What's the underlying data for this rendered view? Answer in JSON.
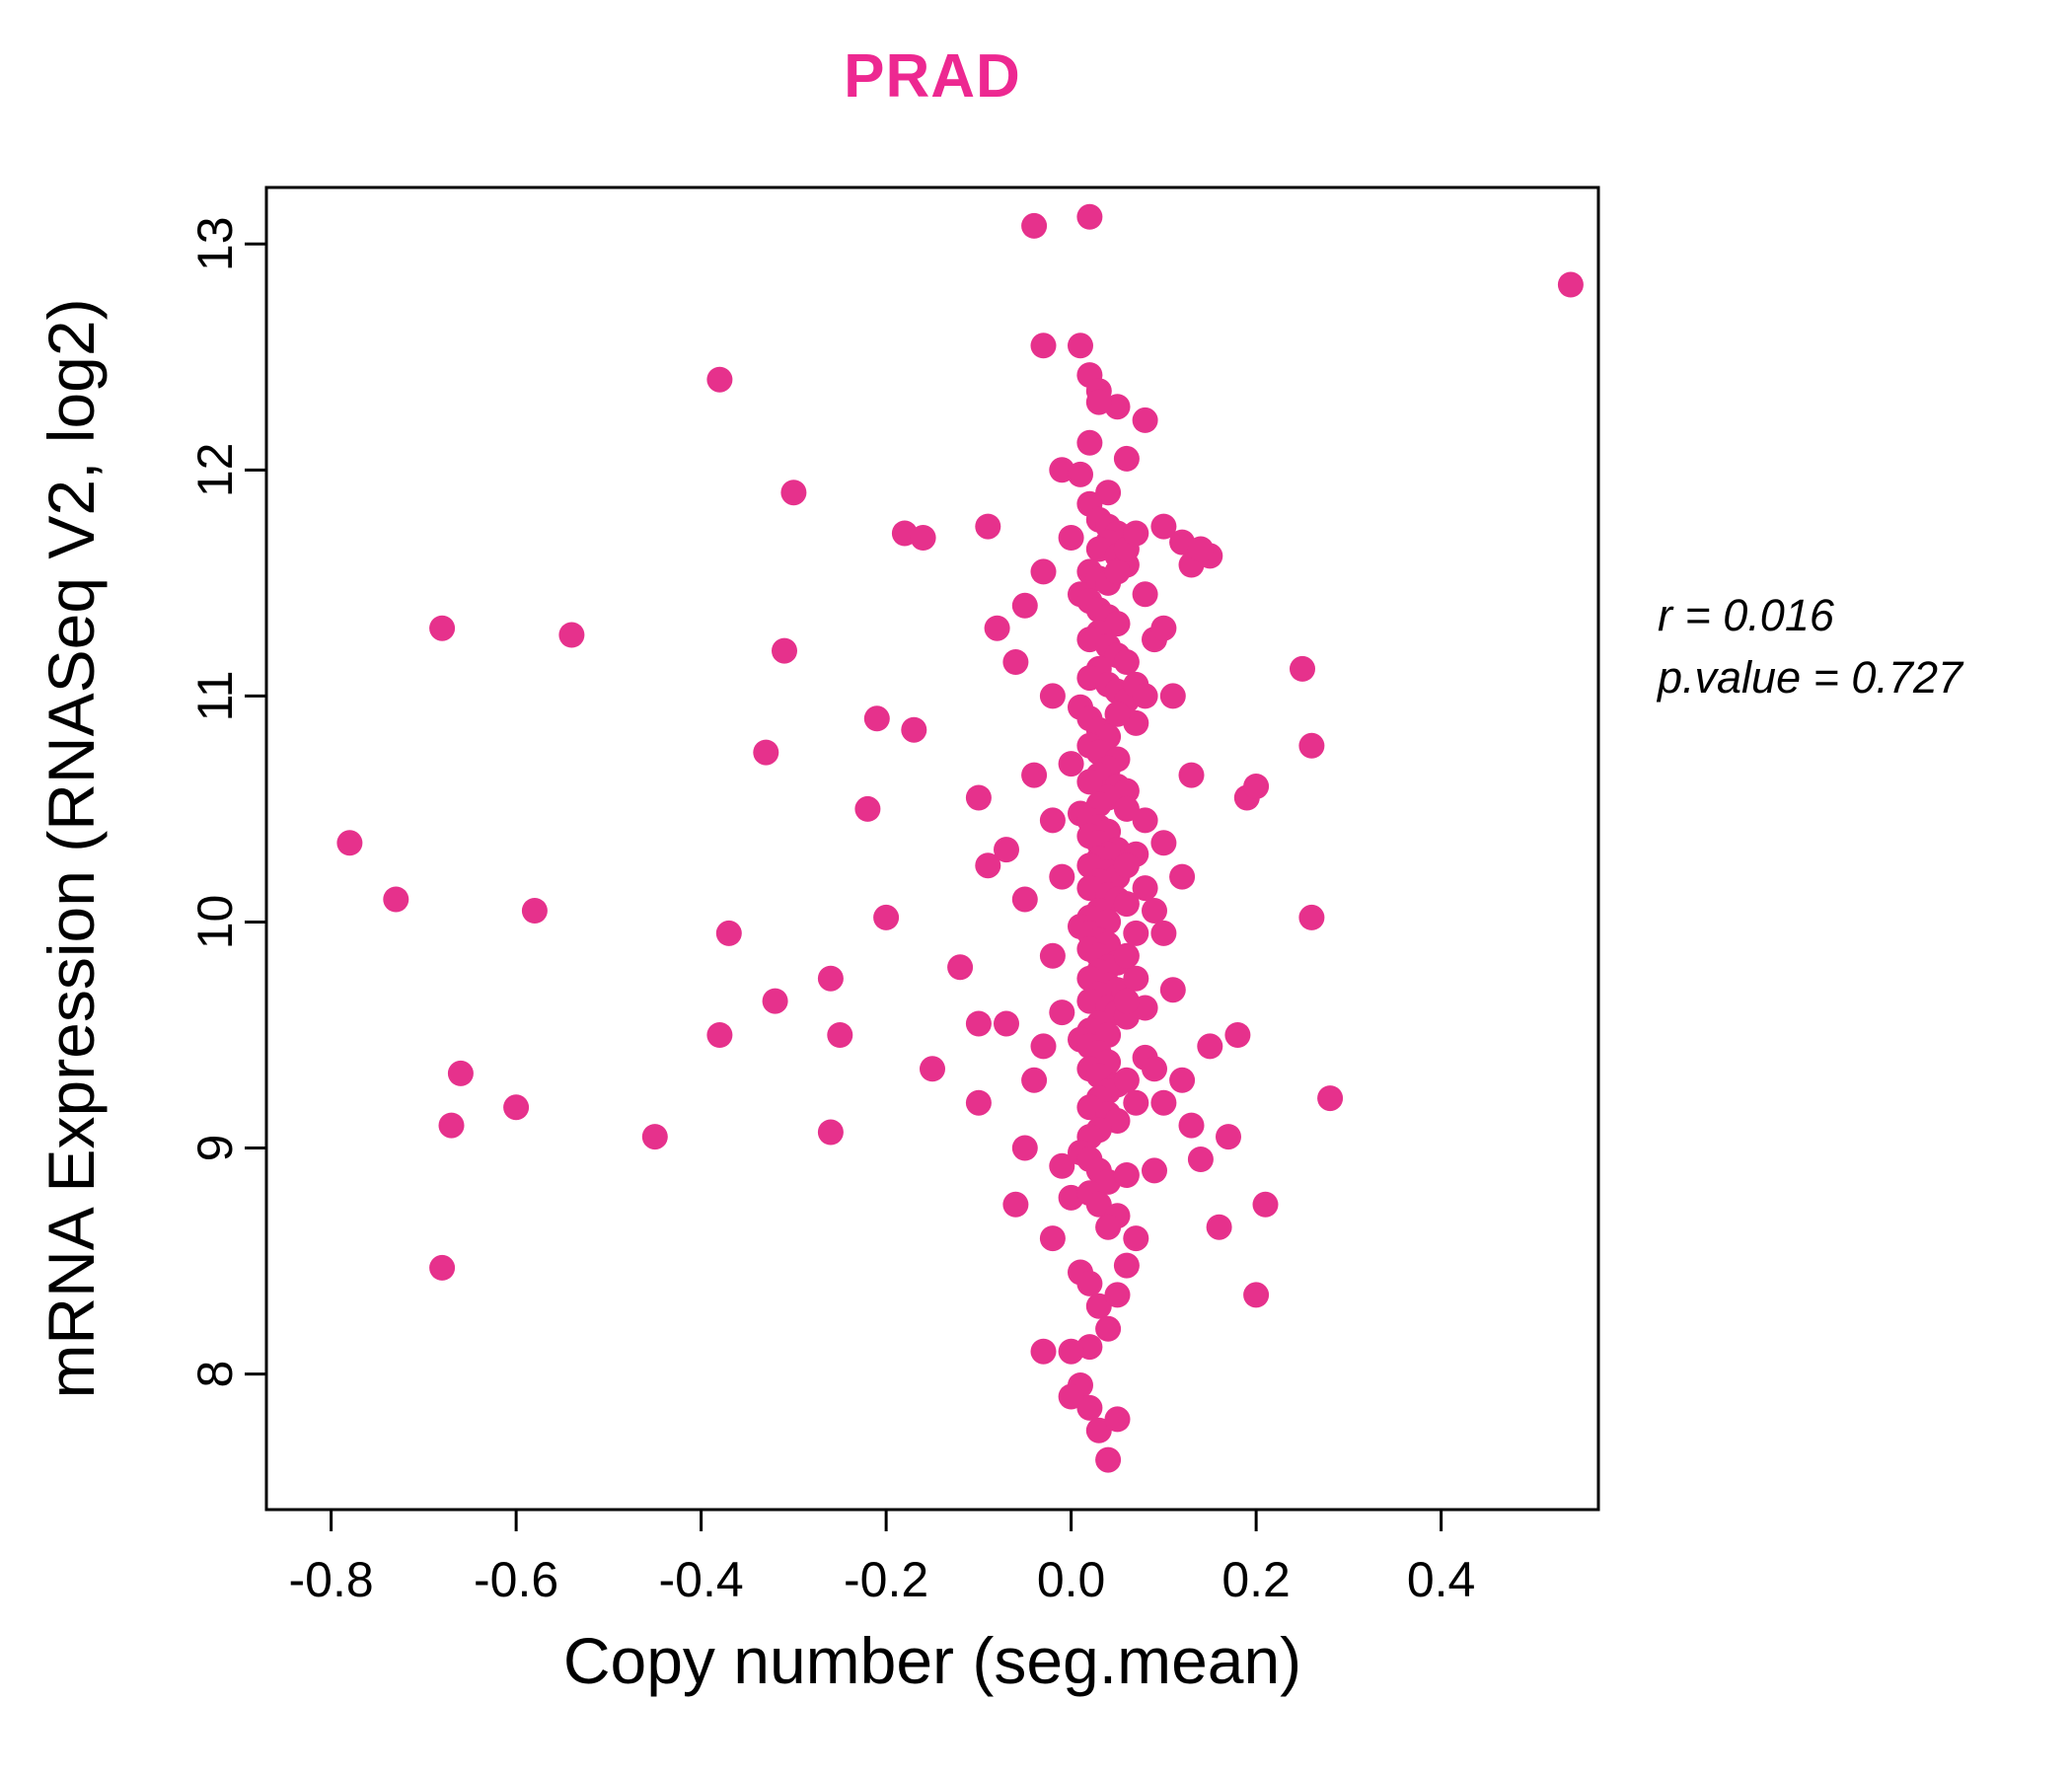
{
  "annotation": {
    "r_line": "r = 0.016",
    "p_line": "p.value = 0.727"
  },
  "chart_data": {
    "type": "scatter",
    "title": "PRAD",
    "xlabel": "Copy number (seg.mean)",
    "ylabel": "mRNA Expression (RNASeq V2, log2)",
    "point_color": "#E6318C",
    "title_color": "#ED2891",
    "r": 0.016,
    "p_value": 0.727,
    "xlim": [
      -0.87,
      0.57
    ],
    "ylim": [
      7.4,
      13.25
    ],
    "grid": false,
    "legend": "none",
    "x_ticks": [
      {
        "value": -0.8,
        "label": "-0.8"
      },
      {
        "value": -0.6,
        "label": "-0.6"
      },
      {
        "value": -0.4,
        "label": "-0.4"
      },
      {
        "value": -0.2,
        "label": "-0.2"
      },
      {
        "value": 0.0,
        "label": "0.0"
      },
      {
        "value": 0.2,
        "label": "0.2"
      },
      {
        "value": 0.4,
        "label": "0.4"
      }
    ],
    "y_ticks": [
      {
        "value": 8,
        "label": "8"
      },
      {
        "value": 9,
        "label": "9"
      },
      {
        "value": 10,
        "label": "10"
      },
      {
        "value": 11,
        "label": "11"
      },
      {
        "value": 12,
        "label": "12"
      },
      {
        "value": 13,
        "label": "13"
      }
    ],
    "points": [
      [
        0.54,
        12.82
      ],
      [
        -0.04,
        13.08
      ],
      [
        0.02,
        13.12
      ],
      [
        -0.03,
        12.55
      ],
      [
        -0.38,
        12.4
      ],
      [
        -0.78,
        10.35
      ],
      [
        -0.73,
        10.1
      ],
      [
        -0.68,
        11.3
      ],
      [
        -0.68,
        8.47
      ],
      [
        -0.66,
        9.33
      ],
      [
        -0.67,
        9.1
      ],
      [
        -0.6,
        9.18
      ],
      [
        -0.58,
        10.05
      ],
      [
        -0.54,
        11.27
      ],
      [
        -0.45,
        9.05
      ],
      [
        -0.38,
        9.5
      ],
      [
        -0.37,
        9.95
      ],
      [
        -0.33,
        10.75
      ],
      [
        -0.31,
        11.2
      ],
      [
        -0.3,
        11.9
      ],
      [
        -0.32,
        9.65
      ],
      [
        -0.26,
        9.75
      ],
      [
        -0.25,
        9.5
      ],
      [
        -0.26,
        9.07
      ],
      [
        -0.22,
        10.5
      ],
      [
        -0.21,
        10.9
      ],
      [
        -0.2,
        10.02
      ],
      [
        -0.18,
        11.72
      ],
      [
        -0.16,
        11.7
      ],
      [
        -0.17,
        10.85
      ],
      [
        -0.15,
        9.35
      ],
      [
        -0.12,
        9.8
      ],
      [
        -0.1,
        9.2
      ],
      [
        -0.1,
        9.55
      ],
      [
        -0.1,
        10.55
      ],
      [
        -0.09,
        11.75
      ],
      [
        -0.09,
        10.25
      ],
      [
        -0.08,
        11.3
      ],
      [
        -0.07,
        10.32
      ],
      [
        -0.07,
        9.55
      ],
      [
        -0.06,
        11.15
      ],
      [
        -0.06,
        8.75
      ],
      [
        -0.05,
        11.4
      ],
      [
        -0.05,
        10.1
      ],
      [
        -0.05,
        9.0
      ],
      [
        -0.04,
        10.65
      ],
      [
        -0.04,
        9.3
      ],
      [
        -0.03,
        11.55
      ],
      [
        -0.03,
        9.45
      ],
      [
        -0.02,
        11.0
      ],
      [
        -0.02,
        10.45
      ],
      [
        -0.02,
        9.85
      ],
      [
        -0.02,
        8.6
      ],
      [
        -0.01,
        12.0
      ],
      [
        -0.01,
        10.2
      ],
      [
        -0.01,
        9.6
      ],
      [
        0.0,
        11.7
      ],
      [
        0.0,
        10.7
      ],
      [
        0.0,
        8.78
      ],
      [
        -0.03,
        8.1
      ],
      [
        0.01,
        12.55
      ],
      [
        0.02,
        12.42
      ],
      [
        0.03,
        12.35
      ],
      [
        0.05,
        12.28
      ],
      [
        0.03,
        12.3
      ],
      [
        0.06,
        12.05
      ],
      [
        0.08,
        12.22
      ],
      [
        0.02,
        12.12
      ],
      [
        0.01,
        11.98
      ],
      [
        0.04,
        11.9
      ],
      [
        0.02,
        11.85
      ],
      [
        0.03,
        11.78
      ],
      [
        0.04,
        11.75
      ],
      [
        0.05,
        11.72
      ],
      [
        0.04,
        11.68
      ],
      [
        0.03,
        11.65
      ],
      [
        0.05,
        11.62
      ],
      [
        0.06,
        11.58
      ],
      [
        0.02,
        11.55
      ],
      [
        0.03,
        11.52
      ],
      [
        0.04,
        11.5
      ],
      [
        0.05,
        11.55
      ],
      [
        0.06,
        11.65
      ],
      [
        0.07,
        11.72
      ],
      [
        0.1,
        11.75
      ],
      [
        0.12,
        11.68
      ],
      [
        0.13,
        11.58
      ],
      [
        0.15,
        11.62
      ],
      [
        0.14,
        11.65
      ],
      [
        0.01,
        11.45
      ],
      [
        0.02,
        11.42
      ],
      [
        0.03,
        11.38
      ],
      [
        0.04,
        11.35
      ],
      [
        0.05,
        11.32
      ],
      [
        0.03,
        11.28
      ],
      [
        0.02,
        11.25
      ],
      [
        0.04,
        11.22
      ],
      [
        0.05,
        11.18
      ],
      [
        0.06,
        11.15
      ],
      [
        0.03,
        11.12
      ],
      [
        0.02,
        11.08
      ],
      [
        0.04,
        11.05
      ],
      [
        0.05,
        11.02
      ],
      [
        0.06,
        10.98
      ],
      [
        0.07,
        11.05
      ],
      [
        0.08,
        11.0
      ],
      [
        0.08,
        11.45
      ],
      [
        0.09,
        11.25
      ],
      [
        0.1,
        11.3
      ],
      [
        0.11,
        11.0
      ],
      [
        0.25,
        11.12
      ],
      [
        0.01,
        10.95
      ],
      [
        0.02,
        10.9
      ],
      [
        0.03,
        10.85
      ],
      [
        0.04,
        10.82
      ],
      [
        0.02,
        10.78
      ],
      [
        0.03,
        10.75
      ],
      [
        0.05,
        10.72
      ],
      [
        0.04,
        10.68
      ],
      [
        0.03,
        10.65
      ],
      [
        0.02,
        10.62
      ],
      [
        0.05,
        10.6
      ],
      [
        0.06,
        10.58
      ],
      [
        0.04,
        10.55
      ],
      [
        0.03,
        10.52
      ],
      [
        0.06,
        10.5
      ],
      [
        0.07,
        10.88
      ],
      [
        0.13,
        10.65
      ],
      [
        0.19,
        10.55
      ],
      [
        0.2,
        10.6
      ],
      [
        0.26,
        10.78
      ],
      [
        0.05,
        10.92
      ],
      [
        0.01,
        10.48
      ],
      [
        0.02,
        10.45
      ],
      [
        0.03,
        10.42
      ],
      [
        0.04,
        10.4
      ],
      [
        0.02,
        10.38
      ],
      [
        0.03,
        10.35
      ],
      [
        0.05,
        10.32
      ],
      [
        0.04,
        10.3
      ],
      [
        0.03,
        10.28
      ],
      [
        0.02,
        10.25
      ],
      [
        0.04,
        10.22
      ],
      [
        0.05,
        10.2
      ],
      [
        0.03,
        10.18
      ],
      [
        0.02,
        10.15
      ],
      [
        0.04,
        10.12
      ],
      [
        0.05,
        10.1
      ],
      [
        0.06,
        10.08
      ],
      [
        0.03,
        10.05
      ],
      [
        0.02,
        10.02
      ],
      [
        0.04,
        10.0
      ],
      [
        0.07,
        10.3
      ],
      [
        0.08,
        10.45
      ],
      [
        0.08,
        10.15
      ],
      [
        0.06,
        10.25
      ],
      [
        0.1,
        10.35
      ],
      [
        0.12,
        10.2
      ],
      [
        0.09,
        10.05
      ],
      [
        0.26,
        10.02
      ],
      [
        0.01,
        9.98
      ],
      [
        0.02,
        9.95
      ],
      [
        0.03,
        9.92
      ],
      [
        0.04,
        9.9
      ],
      [
        0.02,
        9.88
      ],
      [
        0.03,
        9.85
      ],
      [
        0.05,
        9.82
      ],
      [
        0.04,
        9.8
      ],
      [
        0.03,
        9.78
      ],
      [
        0.02,
        9.75
      ],
      [
        0.04,
        9.72
      ],
      [
        0.05,
        9.7
      ],
      [
        0.03,
        9.68
      ],
      [
        0.02,
        9.65
      ],
      [
        0.04,
        9.62
      ],
      [
        0.05,
        9.6
      ],
      [
        0.06,
        9.58
      ],
      [
        0.03,
        9.55
      ],
      [
        0.02,
        9.52
      ],
      [
        0.04,
        9.5
      ],
      [
        0.07,
        9.75
      ],
      [
        0.08,
        9.62
      ],
      [
        0.06,
        9.85
      ],
      [
        0.07,
        9.95
      ],
      [
        0.1,
        9.95
      ],
      [
        0.11,
        9.7
      ],
      [
        0.06,
        9.65
      ],
      [
        0.01,
        9.48
      ],
      [
        0.02,
        9.45
      ],
      [
        0.03,
        9.42
      ],
      [
        0.04,
        9.38
      ],
      [
        0.02,
        9.35
      ],
      [
        0.03,
        9.32
      ],
      [
        0.05,
        9.28
      ],
      [
        0.04,
        9.25
      ],
      [
        0.03,
        9.22
      ],
      [
        0.02,
        9.18
      ],
      [
        0.04,
        9.15
      ],
      [
        0.05,
        9.12
      ],
      [
        0.03,
        9.08
      ],
      [
        0.02,
        9.05
      ],
      [
        0.06,
        9.3
      ],
      [
        0.07,
        9.2
      ],
      [
        0.08,
        9.4
      ],
      [
        0.09,
        9.35
      ],
      [
        0.1,
        9.2
      ],
      [
        0.12,
        9.3
      ],
      [
        0.13,
        9.1
      ],
      [
        0.15,
        9.45
      ],
      [
        0.17,
        9.05
      ],
      [
        0.18,
        9.5
      ],
      [
        0.28,
        9.22
      ],
      [
        0.14,
        8.95
      ],
      [
        0.01,
        8.98
      ],
      [
        0.02,
        8.95
      ],
      [
        0.03,
        8.9
      ],
      [
        0.04,
        8.85
      ],
      [
        0.02,
        8.8
      ],
      [
        0.03,
        8.75
      ],
      [
        0.05,
        8.7
      ],
      [
        0.04,
        8.65
      ],
      [
        0.06,
        8.88
      ],
      [
        0.07,
        8.6
      ],
      [
        0.09,
        8.9
      ],
      [
        0.16,
        8.65
      ],
      [
        -0.01,
        8.92
      ],
      [
        0.21,
        8.75
      ],
      [
        0.01,
        8.45
      ],
      [
        0.02,
        8.4
      ],
      [
        0.03,
        8.3
      ],
      [
        0.04,
        8.2
      ],
      [
        0.02,
        8.12
      ],
      [
        0.05,
        8.35
      ],
      [
        0.0,
        8.1
      ],
      [
        0.2,
        8.35
      ],
      [
        0.06,
        8.48
      ],
      [
        0.01,
        7.95
      ],
      [
        0.02,
        7.85
      ],
      [
        0.03,
        7.75
      ],
      [
        0.04,
        7.62
      ],
      [
        0.0,
        7.9
      ],
      [
        0.05,
        7.8
      ]
    ]
  }
}
